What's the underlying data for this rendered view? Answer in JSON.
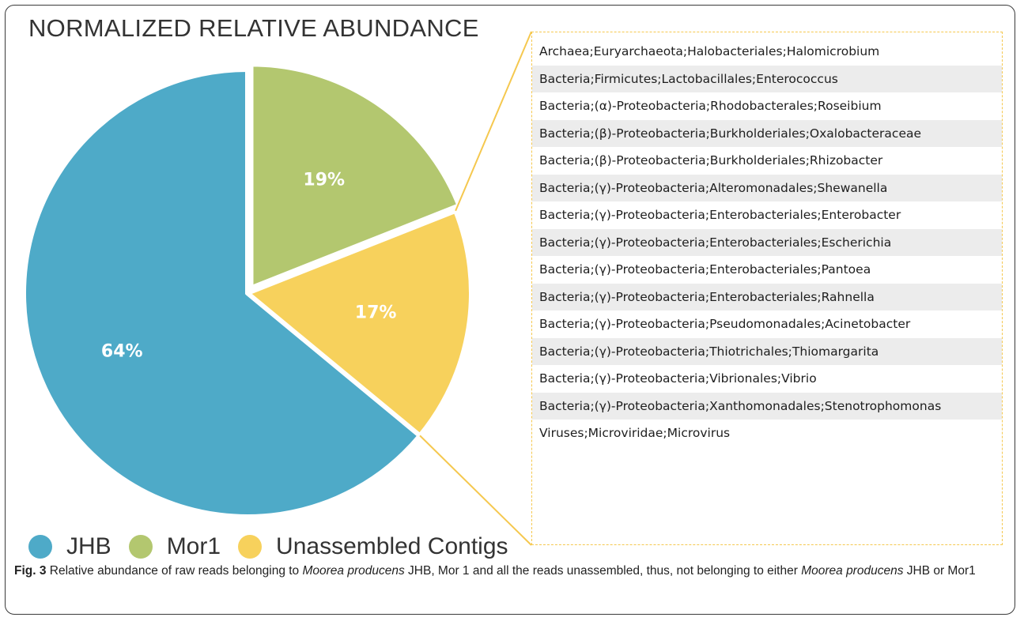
{
  "chart_data": {
    "type": "pie",
    "title": "NORMALIZED RELATIVE ABUNDANCE",
    "categories": [
      "JHB",
      "Mor1",
      "Unassembled Contigs"
    ],
    "values": [
      64,
      19,
      17
    ],
    "value_labels": [
      "64%",
      "19%",
      "17%"
    ],
    "colors": [
      "#4eaac8",
      "#b3c76f",
      "#f7d15c"
    ],
    "exploded": [
      "Mor1"
    ],
    "legend_position": "bottom-left"
  },
  "breakout": {
    "from_slice": "Unassembled Contigs",
    "connector_color": "#f5c84f",
    "items": [
      "Archaea;Euryarchaeota;Halobacteriales;Halomicrobium",
      "Bacteria;Firmicutes;Lactobacillales;Enterococcus",
      "Bacteria;(α)-Proteobacteria;Rhodobacterales;Roseibium",
      "Bacteria;(β)-Proteobacteria;Burkholderiales;Oxalobacteraceae",
      "Bacteria;(β)-Proteobacteria;Burkholderiales;Rhizobacter",
      "Bacteria;(γ)-Proteobacteria;Alteromonadales;Shewanella",
      "Bacteria;(γ)-Proteobacteria;Enterobacteriales;Enterobacter",
      "Bacteria;(γ)-Proteobacteria;Enterobacteriales;Escherichia",
      "Bacteria;(γ)-Proteobacteria;Enterobacteriales;Pantoea",
      "Bacteria;(γ)-Proteobacteria;Enterobacteriales;Rahnella",
      "Bacteria;(γ)-Proteobacteria;Pseudomonadales;Acinetobacter",
      "Bacteria;(γ)-Proteobacteria;Thiotrichales;Thiomargarita",
      "Bacteria;(γ)-Proteobacteria;Vibrionales;Vibrio",
      "Bacteria;(γ)-Proteobacteria;Xanthomonadales;Stenotrophomonas",
      "Viruses;Microviridae;Microvirus"
    ]
  },
  "caption": {
    "fig_label": "Fig. 3",
    "part1": " Relative abundance of raw reads belonging to ",
    "italic1": "Moorea producens",
    "part2": " JHB, Mor 1 and all the reads unassembled, thus, not belonging to either ",
    "italic2": "Moorea producens",
    "part3": " JHB or Mor1"
  }
}
